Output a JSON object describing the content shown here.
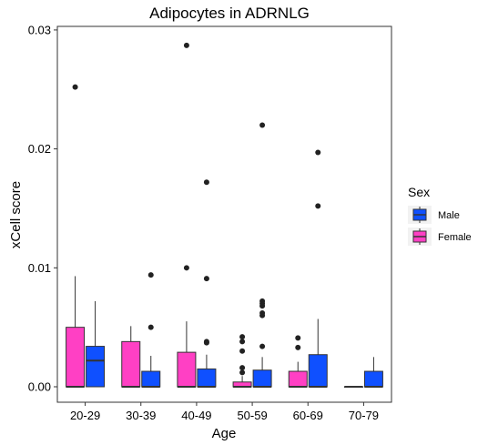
{
  "chart_data": {
    "type": "boxplot",
    "title": "Adipocytes in ADRNLG",
    "xlabel": "Age",
    "ylabel": "xCell score",
    "categories": [
      "20-29",
      "30-39",
      "40-49",
      "50-59",
      "60-69",
      "70-79"
    ],
    "ylim": [
      -0.0013,
      0.0303
    ],
    "yticks": [
      0.0,
      0.01,
      0.02,
      0.03
    ],
    "ytick_labels": [
      "0.00",
      "0.01",
      "0.02",
      "0.03"
    ],
    "grid": false,
    "legend": {
      "title": "Sex",
      "position": "right",
      "entries": [
        {
          "name": "Male",
          "color": "#0f50ff"
        },
        {
          "name": "Female",
          "color": "#ff40c4"
        }
      ]
    },
    "series": [
      {
        "name": "Female",
        "color": "#ff40c4",
        "boxes": [
          {
            "category": "20-29",
            "min": 0.0,
            "q1": 0.0,
            "median": 0.0,
            "q3": 0.005,
            "max": 0.0093,
            "outliers": [
              0.0252
            ]
          },
          {
            "category": "30-39",
            "min": 0.0,
            "q1": 0.0,
            "median": 0.0,
            "q3": 0.0038,
            "max": 0.0051,
            "outliers": []
          },
          {
            "category": "40-49",
            "min": 0.0,
            "q1": 0.0,
            "median": 0.0,
            "q3": 0.0029,
            "max": 0.0055,
            "outliers": [
              0.0287,
              0.01
            ]
          },
          {
            "category": "50-59",
            "min": 0.0,
            "q1": 0.0,
            "median": 0.0,
            "q3": 0.0004,
            "max": 0.0009,
            "outliers": [
              0.0042,
              0.0038,
              0.003,
              0.0016,
              0.0012
            ]
          },
          {
            "category": "60-69",
            "min": 0.0,
            "q1": 0.0,
            "median": 0.0,
            "q3": 0.0013,
            "max": 0.0021,
            "outliers": [
              0.0041,
              0.0033
            ]
          },
          {
            "category": "70-79",
            "min": 0.0,
            "q1": 0.0,
            "median": 0.0,
            "q3": 0.0,
            "max": 0.0,
            "outliers": []
          }
        ]
      },
      {
        "name": "Male",
        "color": "#0f50ff",
        "boxes": [
          {
            "category": "20-29",
            "min": 0.0,
            "q1": 0.0,
            "median": 0.0022,
            "q3": 0.0034,
            "max": 0.0072,
            "outliers": []
          },
          {
            "category": "30-39",
            "min": 0.0,
            "q1": 0.0,
            "median": 0.0,
            "q3": 0.0013,
            "max": 0.0026,
            "outliers": [
              0.0094,
              0.005
            ]
          },
          {
            "category": "40-49",
            "min": 0.0,
            "q1": 0.0,
            "median": 0.0,
            "q3": 0.0015,
            "max": 0.0027,
            "outliers": [
              0.0172,
              0.0091,
              0.0038,
              0.0037
            ]
          },
          {
            "category": "50-59",
            "min": 0.0,
            "q1": 0.0,
            "median": 0.0,
            "q3": 0.0014,
            "max": 0.0025,
            "outliers": [
              0.022,
              0.0072,
              0.007,
              0.0068,
              0.0062,
              0.006,
              0.0034
            ]
          },
          {
            "category": "60-69",
            "min": 0.0,
            "q1": 0.0,
            "median": 0.0,
            "q3": 0.0027,
            "max": 0.0057,
            "outliers": [
              0.0197,
              0.0152
            ]
          },
          {
            "category": "70-79",
            "min": 0.0,
            "q1": 0.0,
            "median": 0.0,
            "q3": 0.0013,
            "max": 0.0025,
            "outliers": []
          }
        ]
      }
    ]
  }
}
